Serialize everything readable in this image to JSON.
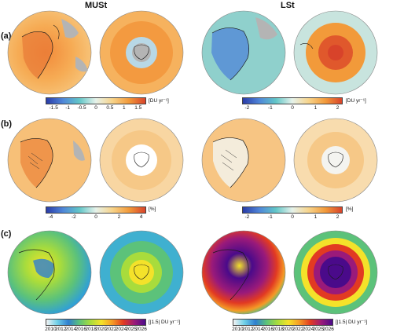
{
  "columns": {
    "left_title": "MUSt",
    "right_title": "LSt"
  },
  "panels": [
    {
      "label": "(a)",
      "left": {
        "ticks": [
          "-1.5",
          "-1",
          "-0.5",
          "0",
          "0.5",
          "1",
          "1.5"
        ],
        "unit": "[DU yr⁻¹]"
      },
      "right": {
        "ticks": [
          "-2",
          "-1",
          "0",
          "1",
          "2"
        ],
        "unit": "[DU yr⁻¹]"
      }
    },
    {
      "label": "(b)",
      "left": {
        "ticks": [
          "-4",
          "-2",
          "0",
          "2",
          "4"
        ],
        "unit": "[%]"
      },
      "right": {
        "ticks": [
          "-2",
          "-1",
          "0",
          "1",
          "2"
        ],
        "unit": "[%]"
      }
    },
    {
      "label": "(c)",
      "left": {
        "ticks": [
          "2010",
          "2012",
          "2014",
          "2016",
          "2018",
          "2020",
          "2022",
          "2024",
          "2025",
          "2026"
        ],
        "unit": "[|1.5| DU yr⁻¹]"
      },
      "right": {
        "ticks": [
          "2010",
          "2012",
          "2014",
          "2016",
          "2018",
          "2020",
          "2022",
          "2024",
          "2025",
          "2026"
        ],
        "unit": "[|1.5| DU yr⁻¹]"
      }
    }
  ],
  "colors": {
    "diverging": [
      "#2a3ca8",
      "#4f86d8",
      "#62c6c8",
      "#e6f2ea",
      "#f7d38a",
      "#f29a3a",
      "#d8432a"
    ],
    "years": [
      "#f3f3f3",
      "#6fd0e8",
      "#2f7fd0",
      "#5cc27a",
      "#a8dc3c",
      "#f4e22a",
      "#f59a26",
      "#e23a22",
      "#9a1a7a",
      "#4a0a8a"
    ],
    "land_grey": "#b4b4b4",
    "coast": "#1a1a1a"
  }
}
